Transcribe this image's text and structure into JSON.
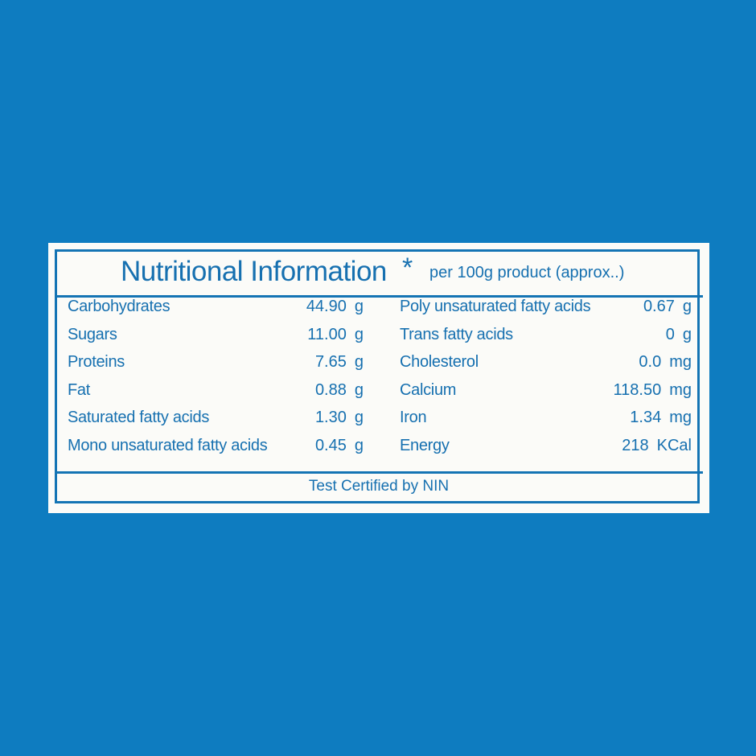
{
  "header": {
    "title": "Nutritional Information",
    "mark": "*",
    "subtitle": "per 100g product (approx..)"
  },
  "table": {
    "left": [
      {
        "name": "Carbohydrates",
        "value": "44.90",
        "unit": "g"
      },
      {
        "name": "Sugars",
        "value": "11.00",
        "unit": "g"
      },
      {
        "name": "Proteins",
        "value": "7.65",
        "unit": "g"
      },
      {
        "name": "Fat",
        "value": "0.88",
        "unit": "g"
      },
      {
        "name": "Saturated fatty acids",
        "value": "1.30",
        "unit": "g"
      },
      {
        "name": "Mono unsaturated fatty acids",
        "value": "0.45",
        "unit": "g"
      }
    ],
    "right": [
      {
        "name": "Poly unsaturated fatty acids",
        "value": "0.67",
        "unit": "g"
      },
      {
        "name": "Trans fatty acids",
        "value": "0",
        "unit": "g"
      },
      {
        "name": "Cholesterol",
        "value": "0.0",
        "unit": "mg"
      },
      {
        "name": "Calcium",
        "value": "118.50",
        "unit": "mg"
      },
      {
        "name": "Iron",
        "value": "1.34",
        "unit": "mg"
      },
      {
        "name": "Energy",
        "value": "218",
        "unit": "KCal"
      }
    ]
  },
  "footer": {
    "text": "Test Certified by NIN"
  }
}
